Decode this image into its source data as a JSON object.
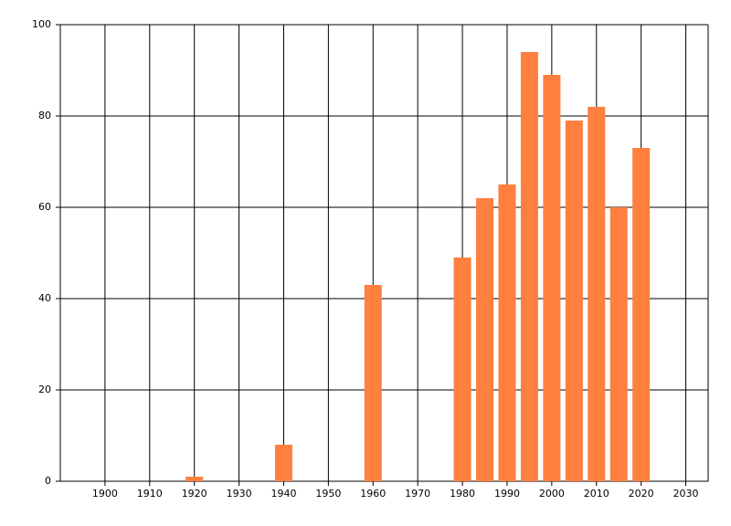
{
  "chart_data": {
    "type": "bar",
    "x": [
      1920,
      1940,
      1960,
      1980,
      1985,
      1990,
      1995,
      2000,
      2005,
      2010,
      2015,
      2020
    ],
    "values": [
      1,
      8,
      43,
      49,
      62,
      65,
      94,
      89,
      79,
      82,
      60,
      73
    ],
    "color": "#ff7f3f",
    "xlim": [
      1890,
      2035
    ],
    "xticks": [
      1900,
      1910,
      1920,
      1930,
      1940,
      1950,
      1960,
      1970,
      1980,
      1990,
      2000,
      2010,
      2020,
      2030
    ],
    "ylim": [
      0,
      100
    ],
    "yticks": [
      0,
      20,
      40,
      60,
      80,
      100
    ],
    "grid": true
  }
}
